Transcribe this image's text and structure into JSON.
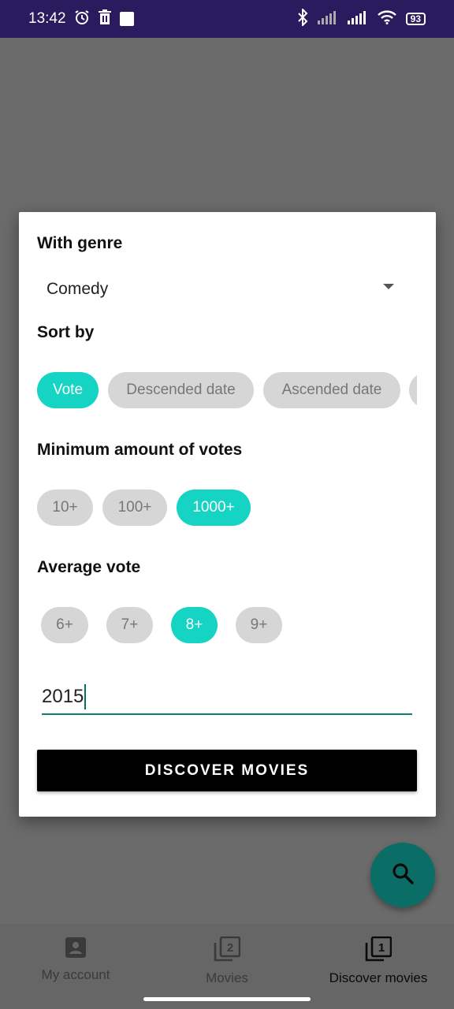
{
  "status_bar": {
    "time": "13:42",
    "battery": "93",
    "icons": [
      "alarm-icon",
      "trash-icon",
      "image-icon",
      "bluetooth-icon",
      "signal-icon",
      "signal-icon",
      "wifi-icon",
      "battery-icon"
    ]
  },
  "dialog": {
    "genre_title": "With genre",
    "genre_value": "Comedy",
    "sort_title": "Sort by",
    "sort_options": [
      "Vote",
      "Descended date",
      "Ascended date"
    ],
    "sort_selected": "Vote",
    "votes_title": "Minimum amount of votes",
    "votes_options": [
      "10+",
      "100+",
      "1000+"
    ],
    "votes_selected": "1000+",
    "average_title": "Average vote",
    "average_options": [
      "6+",
      "7+",
      "8+",
      "9+"
    ],
    "average_selected": "8+",
    "year_value": "2015",
    "discover_label": "DISCOVER MOVIES"
  },
  "fab": {
    "icon": "search-icon"
  },
  "bottom_nav": {
    "items": [
      {
        "label": "My account",
        "icon": "account-icon"
      },
      {
        "label": "Movies",
        "icon": "filter-2-icon"
      },
      {
        "label": "Discover movies",
        "icon": "filter-1-icon"
      }
    ],
    "active": "Discover movies"
  },
  "colors": {
    "accent": "#16d4c4",
    "chip_default": "#d6d6d6",
    "fab": "#0b6e66",
    "status_bar": "#2a1a5e"
  }
}
